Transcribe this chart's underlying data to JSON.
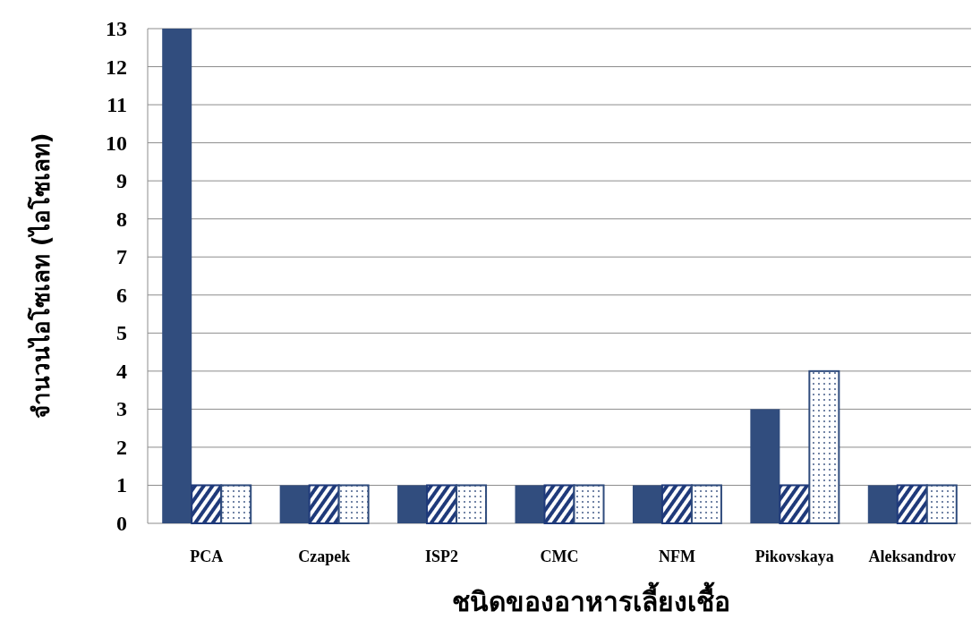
{
  "chart_data": {
    "type": "bar",
    "xlabel": "ชนิดของอาหารเลี้ยงเชื้อ",
    "ylabel": "จำนวนไอโซเลท (ไอโซเลท)",
    "categories": [
      "PCA",
      "Czapek",
      "ISP2",
      "CMC",
      "NFM",
      "Pikovskaya",
      "Aleksandrov"
    ],
    "series": [
      {
        "color": "#314d7e",
        "values": [
          13,
          1,
          1,
          1,
          1,
          3,
          1
        ]
      },
      {
        "color": "#1f3a7a",
        "values": [
          1,
          1,
          1,
          1,
          1,
          1,
          1
        ]
      },
      {
        "color": "#2f4b7c",
        "values": [
          1,
          1,
          1,
          1,
          1,
          4,
          1
        ]
      }
    ],
    "ylim": [
      0,
      13
    ],
    "yticks": [
      0,
      1,
      2,
      3,
      4,
      5,
      6,
      7,
      8,
      9,
      10,
      11,
      12,
      13
    ],
    "grid": "y"
  }
}
